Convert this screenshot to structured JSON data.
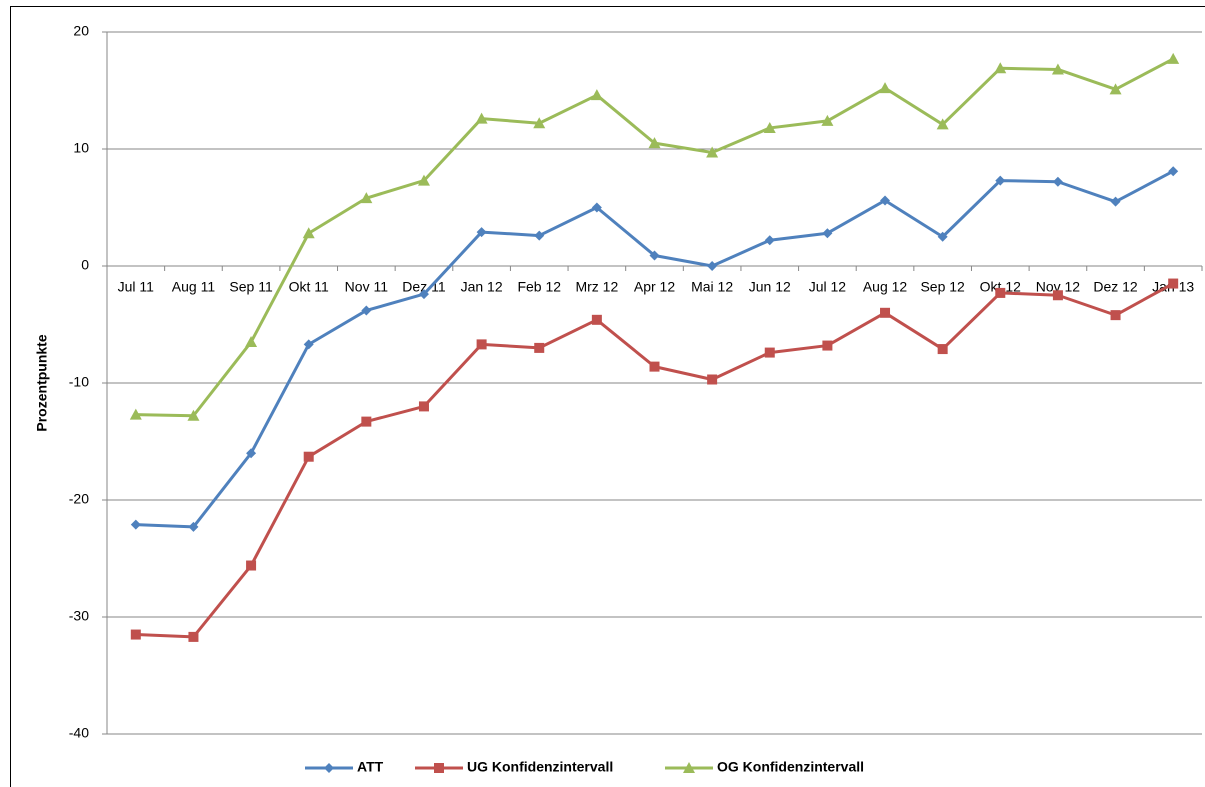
{
  "chart_data": {
    "type": "line",
    "y_label": "Prozentpunkte",
    "categories": [
      "Jul 11",
      "Aug 11",
      "Sep 11",
      "Okt 11",
      "Nov 11",
      "Dez 11",
      "Jan 12",
      "Feb 12",
      "Mrz 12",
      "Apr 12",
      "Mai 12",
      "Jun 12",
      "Jul 12",
      "Aug 12",
      "Sep 12",
      "Okt 12",
      "Nov 12",
      "Dez 12",
      "Jan 13"
    ],
    "series": [
      {
        "name": "ATT",
        "color": "#4f81bd",
        "marker": "diamond",
        "values": [
          -22.1,
          -22.3,
          -16.0,
          -6.7,
          -3.8,
          -2.4,
          2.9,
          2.6,
          5.0,
          0.9,
          0.0,
          2.2,
          2.8,
          5.6,
          2.5,
          7.3,
          7.2,
          5.5,
          8.1
        ]
      },
      {
        "name": "UG Konfidenzintervall",
        "color": "#c0504d",
        "marker": "square",
        "values": [
          -31.5,
          -31.7,
          -25.6,
          -16.3,
          -13.3,
          -12.0,
          -6.7,
          -7.0,
          -4.6,
          -8.6,
          -9.7,
          -7.4,
          -6.8,
          -4.0,
          -7.1,
          -2.3,
          -2.5,
          -4.2,
          -1.5
        ]
      },
      {
        "name": "OG Konfidenzintervall",
        "color": "#9bbb59",
        "marker": "triangle",
        "values": [
          -12.7,
          -12.8,
          -6.5,
          2.8,
          5.8,
          7.3,
          12.6,
          12.2,
          14.6,
          10.5,
          9.7,
          11.8,
          12.4,
          15.2,
          12.1,
          16.9,
          16.8,
          15.1,
          17.7
        ]
      }
    ],
    "ylim": [
      -40,
      20
    ],
    "yticks": [
      -40,
      -30,
      -20,
      -10,
      0,
      10,
      20
    ],
    "grid": true
  }
}
